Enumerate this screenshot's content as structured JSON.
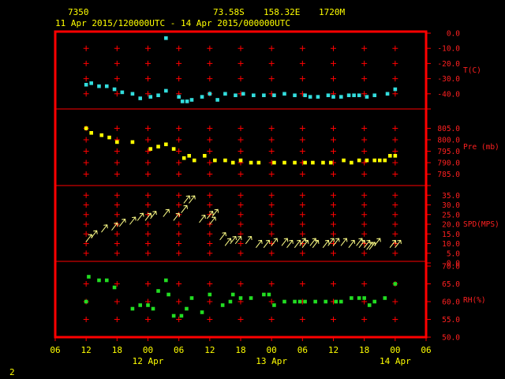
{
  "header": {
    "station": "7350",
    "lat": "73.58S",
    "lon": "158.32E",
    "elevation": "1720M",
    "period": "11 Apr 2015/120000UTC - 14 Apr 2015/000000UTC"
  },
  "page_number": "2",
  "colors": {
    "background": "#000000",
    "frame": "#ff0000",
    "text": "#ffff00",
    "temperature": "#33dddd",
    "pressure": "#ffff00",
    "wind": "#ffff88",
    "rh": "#22dd22"
  },
  "chart_data": {
    "type": "scatter",
    "x_axis": {
      "unit": "hours since 11 Apr 2015 00 UTC",
      "tick_hours": [
        6,
        12,
        18,
        24,
        30,
        36,
        42,
        48,
        54,
        60,
        66,
        72,
        78
      ],
      "tick_labels": [
        "06",
        "12",
        "18",
        "00",
        "06",
        "12",
        "18",
        "00",
        "06",
        "12",
        "18",
        "00",
        "06"
      ],
      "range": [
        6,
        78
      ],
      "date_labels": [
        {
          "hour": 24,
          "text": "12 Apr"
        },
        {
          "hour": 48,
          "text": "13 Apr"
        },
        {
          "hour": 72,
          "text": "14 Apr"
        }
      ]
    },
    "panels": [
      {
        "name": "temperature",
        "label": "T(C)",
        "ylim": [
          -50,
          0
        ],
        "ticks": [
          0,
          -10,
          -20,
          -30,
          -40,
          -50
        ],
        "tick_labels": [
          "0.0",
          "-10.0",
          "-20.0",
          "-30.0",
          "-40.0"
        ],
        "series": {
          "hours": [
            12,
            13,
            14.5,
            16,
            17.5,
            19,
            21,
            22.5,
            24.5,
            26,
            27.5,
            30,
            30.7,
            31.6,
            32.5,
            34.5,
            36,
            37.5,
            39,
            41,
            42.5,
            44.5,
            46.5,
            48.5,
            50.5,
            52.5,
            54.5,
            55.5,
            57,
            59,
            60,
            61.5,
            63,
            64,
            65,
            66.5,
            68,
            70.5,
            72
          ],
          "values": [
            -34,
            -33,
            -35,
            -35,
            -37,
            -39,
            -40,
            -43,
            -42,
            -41,
            -38,
            -42,
            -45,
            -45,
            -44,
            -42,
            -40,
            -44,
            -40,
            -41,
            -40,
            -41,
            -41,
            -41,
            -40,
            -41,
            -41,
            -42,
            -42,
            -41,
            -42,
            -42,
            -41,
            -41,
            -41,
            -42,
            -41,
            -40,
            -37
          ]
        },
        "extra_points": [
          {
            "hour": 27.5,
            "value": 0
          }
        ]
      },
      {
        "name": "pressure",
        "label": "Pre (mb)",
        "ylim": [
          780,
          810
        ],
        "ticks": [
          805,
          800,
          795,
          790,
          785,
          780
        ],
        "tick_labels": [
          "805.0",
          "800.0",
          "795.0",
          "790.0",
          "785.0"
        ],
        "series": {
          "hours": [
            12,
            13,
            15,
            16.5,
            18,
            21,
            24.5,
            26,
            27.5,
            29,
            31,
            32,
            33,
            35,
            37,
            39,
            40.5,
            42,
            44,
            45.5,
            48.5,
            50.5,
            52.5,
            54.5,
            56,
            58,
            59.5,
            62,
            63.5,
            65,
            66.5,
            68,
            69,
            70,
            71,
            72
          ],
          "values": [
            805,
            803,
            802,
            801,
            799,
            799,
            796,
            797,
            798,
            796,
            792,
            793,
            791,
            793,
            791,
            791,
            790,
            791,
            790,
            790,
            790,
            790,
            790,
            790,
            790,
            790,
            790,
            791,
            790,
            791,
            791,
            791,
            791,
            791,
            793,
            793
          ]
        }
      },
      {
        "name": "wind",
        "label": "SPD(MPS)",
        "ylim": [
          0,
          40
        ],
        "ticks": [
          0,
          5,
          10,
          15,
          20,
          25,
          30,
          35
        ],
        "tick_labels": [
          "0.0",
          "5.0",
          "10.0",
          "15.0",
          "20.0",
          "25.0",
          "30.0",
          "35.0"
        ],
        "series": {
          "hours": [
            12,
            13,
            15,
            17,
            18.5,
            20.5,
            22,
            23.5,
            24.5,
            27,
            29,
            30.5,
            31,
            32,
            34,
            35.5,
            36,
            36.5,
            38,
            39,
            40,
            41,
            43,
            45,
            46.5,
            48,
            50,
            51,
            52.5,
            53.5,
            54,
            55.5,
            56,
            58,
            59,
            60,
            61.5,
            63,
            64.5,
            65,
            66,
            66.5,
            67,
            68,
            71,
            72
          ],
          "values": [
            11,
            13,
            16,
            17,
            19,
            20,
            22,
            22,
            23,
            24,
            22,
            26,
            31,
            31,
            21,
            23,
            20,
            24,
            12,
            9,
            10,
            10,
            10,
            8,
            8,
            9,
            9,
            8,
            8,
            9,
            8,
            9,
            8,
            8,
            9,
            9,
            9,
            8,
            9,
            8,
            8,
            7,
            7,
            9,
            8,
            8
          ]
        }
      },
      {
        "name": "rh",
        "label": "RH(%)",
        "ylim": [
          50,
          70
        ],
        "ticks": [
          70,
          65,
          60,
          55,
          50
        ],
        "tick_labels": [
          "70.0",
          "65.0",
          "60.0",
          "55.0",
          "50.0"
        ],
        "series": {
          "hours": [
            12,
            12.5,
            14.5,
            16,
            17.5,
            21,
            22.5,
            24,
            25,
            26,
            27.5,
            28,
            29,
            30.5,
            31.5,
            32.5,
            34.5,
            36,
            38.5,
            40,
            40.5,
            42,
            44,
            46.5,
            47.5,
            48.5,
            50.5,
            52.5,
            53.5,
            54.5,
            56.5,
            58.5,
            60.5,
            61.5,
            63.5,
            65,
            66,
            67,
            68,
            70,
            72
          ],
          "values": [
            60,
            67,
            66,
            66,
            64,
            58,
            59,
            59,
            58,
            63,
            66,
            62,
            56,
            56,
            58,
            61,
            57,
            62,
            59,
            60,
            62,
            61,
            61,
            62,
            62,
            59,
            60,
            60,
            60,
            60,
            60,
            60,
            60,
            60,
            61,
            61,
            61,
            59,
            60,
            61,
            65
          ]
        }
      }
    ],
    "ylabels_right": [
      "T(C)",
      "Pre (mb)",
      "SPD(MPS)",
      "RH(%)"
    ],
    "grid": true
  }
}
